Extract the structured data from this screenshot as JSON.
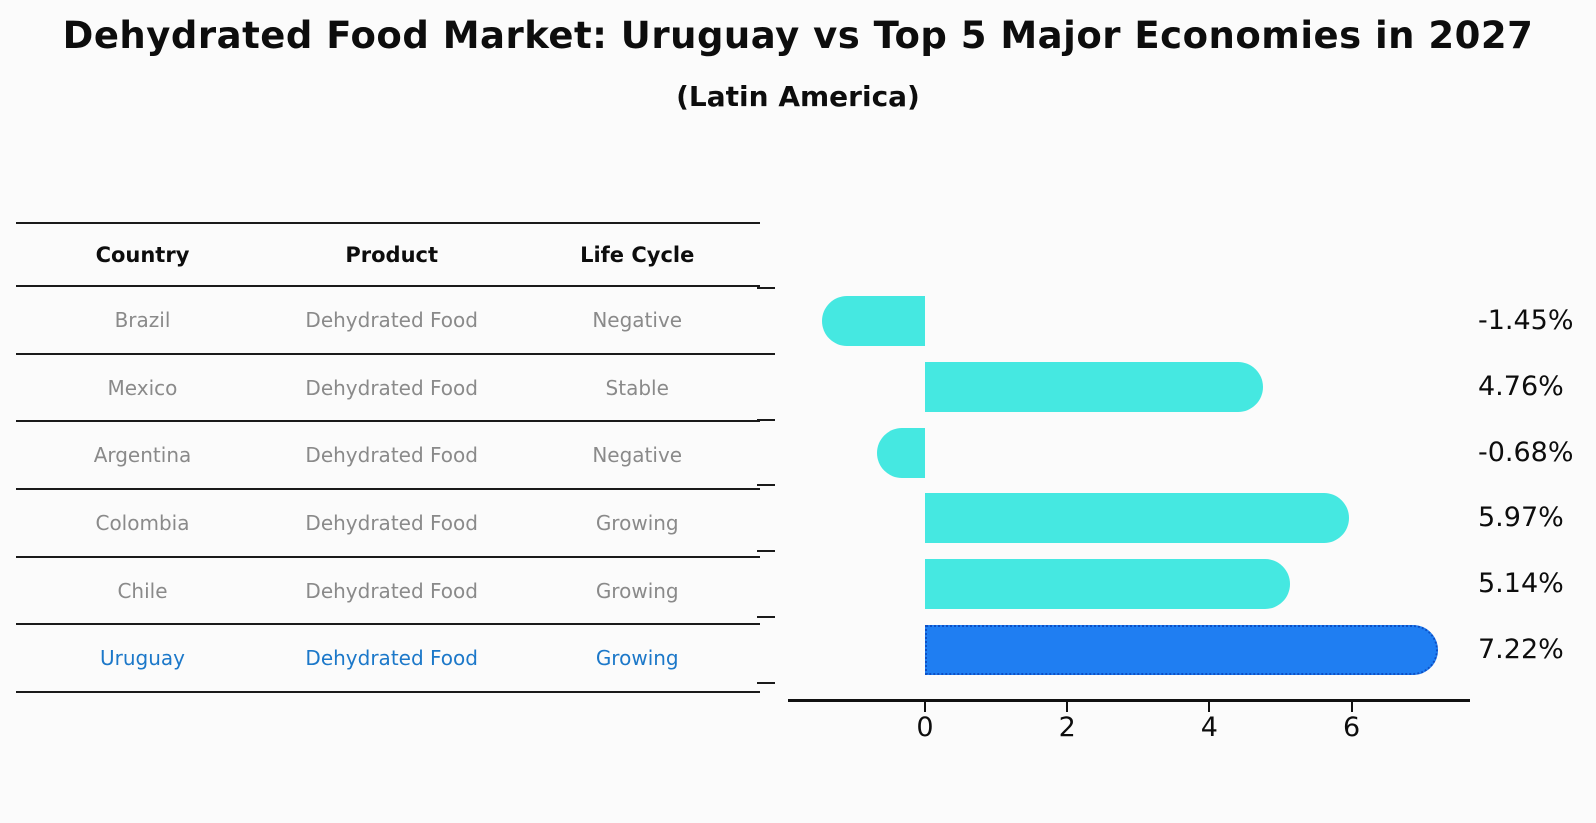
{
  "page": {
    "background": "#fbfbfb"
  },
  "header": {
    "title": "Dehydrated Food Market: Uruguay vs Top 5 Major Economies in 2027",
    "subtitle": "(Latin America)"
  },
  "table": {
    "headers": [
      "Country",
      "Product",
      "Life Cycle"
    ],
    "rows": [
      {
        "country": "Brazil",
        "product": "Dehydrated Food",
        "life_cycle": "Negative",
        "highlight": false
      },
      {
        "country": "Mexico",
        "product": "Dehydrated Food",
        "life_cycle": "Stable",
        "highlight": false
      },
      {
        "country": "Argentina",
        "product": "Dehydrated Food",
        "life_cycle": "Negative",
        "highlight": false
      },
      {
        "country": "Colombia",
        "product": "Dehydrated Food",
        "life_cycle": "Growing",
        "highlight": false
      },
      {
        "country": "Chile",
        "product": "Dehydrated Food",
        "life_cycle": "Growing",
        "highlight": false
      },
      {
        "country": "Uruguay",
        "product": "Dehydrated Food",
        "life_cycle": "Growing",
        "highlight": true
      }
    ],
    "text_color": "#8a8a8a",
    "highlight_text_color": "#1c78c9"
  },
  "chart_data": {
    "type": "bar",
    "orientation": "horizontal",
    "title": "",
    "xlabel": "",
    "ylabel": "",
    "categories": [
      "Brazil",
      "Mexico",
      "Argentina",
      "Colombia",
      "Chile",
      "Uruguay"
    ],
    "values": [
      -1.45,
      4.76,
      -0.68,
      5.97,
      5.14,
      7.22
    ],
    "value_labels": [
      "-1.45%",
      "4.76%",
      "-0.68%",
      "5.97%",
      "5.14%",
      "7.22%"
    ],
    "highlight_index": 5,
    "bar_color": "#45e8e1",
    "highlight_bar_color": "#1f7ef2",
    "highlight_border_color": "#0d4fc4",
    "xticks": [
      0,
      2,
      4,
      6
    ],
    "xlim": [
      -1.93,
      7.66
    ],
    "grid": false,
    "legend": false
  }
}
